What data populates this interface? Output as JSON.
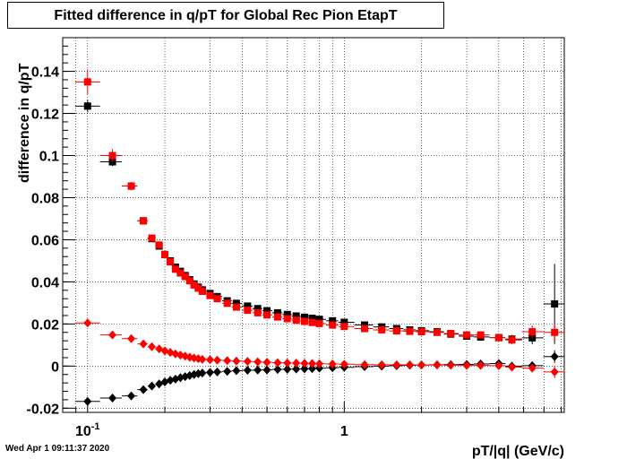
{
  "chart_data": {
    "type": "scatter",
    "title": "Fitted difference in q/pT for Global Rec Pion EtapT",
    "xlabel": "pT/|q| (GeV/c)",
    "ylabel": "difference in q/pT",
    "xscale": "log",
    "xlim": [
      0.08,
      7.2
    ],
    "ylim": [
      -0.022,
      0.156
    ],
    "grid": true,
    "x_ticks": [
      {
        "value": 0.1,
        "label": "10",
        "sup": "-1"
      },
      {
        "value": 1,
        "label": "1",
        "sup": ""
      }
    ],
    "y_ticks": [
      -0.02,
      0,
      0.02,
      0.04,
      0.06,
      0.08,
      0.1,
      0.12,
      0.14
    ],
    "y_tick_labels": [
      "-0.02",
      "0",
      "0.02",
      "0.04",
      "0.06",
      "0.08",
      "0.1",
      "0.12",
      "0.14"
    ],
    "series": [
      {
        "marker": "square",
        "color": "#000000",
        "x": [
          0.1,
          0.125,
          0.148,
          0.165,
          0.178,
          0.19,
          0.2,
          0.21,
          0.22,
          0.23,
          0.24,
          0.25,
          0.26,
          0.27,
          0.28,
          0.3,
          0.32,
          0.35,
          0.38,
          0.42,
          0.46,
          0.5,
          0.55,
          0.6,
          0.65,
          0.7,
          0.75,
          0.8,
          0.9,
          1.0,
          1.2,
          1.4,
          1.6,
          1.8,
          2.0,
          2.3,
          2.6,
          3.0,
          3.4,
          4.0,
          4.5,
          5.4,
          6.6
        ],
        "y": [
          0.1235,
          0.097,
          0.0855,
          0.069,
          0.0605,
          0.057,
          0.053,
          0.05,
          0.047,
          0.045,
          0.043,
          0.041,
          0.039,
          0.0375,
          0.0362,
          0.0345,
          0.033,
          0.031,
          0.0298,
          0.0285,
          0.0273,
          0.0263,
          0.0253,
          0.0245,
          0.0238,
          0.0232,
          0.0227,
          0.0222,
          0.0215,
          0.0208,
          0.0195,
          0.0186,
          0.0178,
          0.0172,
          0.0168,
          0.0163,
          0.0152,
          0.0142,
          0.0138,
          0.0135,
          0.0128,
          0.0134,
          0.0295
        ],
        "yerr": [
          0.003,
          0.002,
          0.0015,
          0.001,
          0.001,
          0.001,
          0.0008,
          0.0008,
          0.0008,
          0.0007,
          0.0007,
          0.0006,
          0.0006,
          0.0006,
          0.0005,
          0.0005,
          0.0005,
          0.0005,
          0.0004,
          0.0004,
          0.0004,
          0.0004,
          0.0004,
          0.0004,
          0.0004,
          0.0004,
          0.0004,
          0.0004,
          0.0004,
          0.0004,
          0.0005,
          0.0005,
          0.0005,
          0.0006,
          0.0006,
          0.0007,
          0.0008,
          0.001,
          0.0012,
          0.0015,
          0.002,
          0.003,
          0.019
        ]
      },
      {
        "marker": "square",
        "color": "#ff0000",
        "x": [
          0.1,
          0.125,
          0.148,
          0.165,
          0.178,
          0.19,
          0.2,
          0.21,
          0.22,
          0.23,
          0.24,
          0.25,
          0.26,
          0.27,
          0.28,
          0.3,
          0.32,
          0.35,
          0.38,
          0.42,
          0.46,
          0.5,
          0.55,
          0.6,
          0.65,
          0.7,
          0.75,
          0.8,
          0.9,
          1.0,
          1.2,
          1.4,
          1.6,
          1.8,
          2.0,
          2.3,
          2.6,
          3.0,
          3.4,
          4.0,
          4.5,
          5.4,
          6.6
        ],
        "y": [
          0.135,
          0.1,
          0.0855,
          0.069,
          0.0608,
          0.0575,
          0.053,
          0.0495,
          0.046,
          0.0442,
          0.0425,
          0.0405,
          0.0385,
          0.037,
          0.0355,
          0.0335,
          0.032,
          0.0298,
          0.028,
          0.0265,
          0.0253,
          0.0243,
          0.0233,
          0.0225,
          0.0218,
          0.0212,
          0.0207,
          0.0202,
          0.0195,
          0.0188,
          0.0178,
          0.0172,
          0.0167,
          0.0165,
          0.0163,
          0.016,
          0.0155,
          0.0148,
          0.0148,
          0.0135,
          0.0124,
          0.0163,
          0.016
        ],
        "yerr": [
          0.006,
          0.003,
          0.002,
          0.001,
          0.001,
          0.001,
          0.0008,
          0.0008,
          0.0008,
          0.0007,
          0.0007,
          0.0006,
          0.0006,
          0.0006,
          0.0005,
          0.0005,
          0.0005,
          0.0005,
          0.0004,
          0.0004,
          0.0004,
          0.0004,
          0.0004,
          0.0004,
          0.0004,
          0.0004,
          0.0004,
          0.0004,
          0.0004,
          0.0004,
          0.0005,
          0.0005,
          0.0005,
          0.0006,
          0.0006,
          0.0007,
          0.0008,
          0.001,
          0.0012,
          0.0015,
          0.002,
          0.003,
          0.004
        ]
      },
      {
        "marker": "diamond",
        "color": "#000000",
        "x": [
          0.1,
          0.125,
          0.148,
          0.165,
          0.178,
          0.19,
          0.2,
          0.21,
          0.22,
          0.23,
          0.24,
          0.25,
          0.26,
          0.27,
          0.28,
          0.3,
          0.32,
          0.35,
          0.38,
          0.42,
          0.46,
          0.5,
          0.55,
          0.6,
          0.65,
          0.7,
          0.75,
          0.8,
          0.9,
          1.0,
          1.2,
          1.4,
          1.6,
          1.8,
          2.0,
          2.3,
          2.6,
          3.0,
          3.4,
          4.0,
          4.5,
          5.4,
          6.6
        ],
        "y": [
          -0.0168,
          -0.0152,
          -0.0142,
          -0.0112,
          -0.0095,
          -0.0085,
          -0.0075,
          -0.0068,
          -0.0062,
          -0.0055,
          -0.005,
          -0.0045,
          -0.004,
          -0.0036,
          -0.0033,
          -0.003,
          -0.0028,
          -0.0025,
          -0.0022,
          -0.002,
          -0.0019,
          -0.0018,
          -0.0016,
          -0.0015,
          -0.0014,
          -0.0013,
          -0.0012,
          -0.001,
          -0.0008,
          -0.0006,
          -0.0003,
          0.0,
          0.0002,
          0.0004,
          0.0005,
          0.0006,
          0.0007,
          0.0008,
          0.001,
          0.0012,
          0.0,
          0.0002,
          0.0045
        ],
        "yerr": [
          0.002,
          0.0015,
          0.001,
          0.001,
          0.0008,
          0.0008,
          0.0006,
          0.0006,
          0.0006,
          0.0005,
          0.0005,
          0.0005,
          0.0004,
          0.0004,
          0.0004,
          0.0004,
          0.0004,
          0.0004,
          0.0003,
          0.0003,
          0.0003,
          0.0003,
          0.0003,
          0.0003,
          0.0003,
          0.0003,
          0.0003,
          0.0003,
          0.0003,
          0.0003,
          0.0004,
          0.0004,
          0.0004,
          0.0005,
          0.0005,
          0.0006,
          0.0007,
          0.0008,
          0.001,
          0.0012,
          0.0015,
          0.002,
          0.003
        ]
      },
      {
        "marker": "diamond",
        "color": "#ff0000",
        "x": [
          0.1,
          0.125,
          0.148,
          0.165,
          0.178,
          0.19,
          0.2,
          0.21,
          0.22,
          0.23,
          0.24,
          0.25,
          0.26,
          0.27,
          0.28,
          0.3,
          0.32,
          0.35,
          0.38,
          0.42,
          0.46,
          0.5,
          0.55,
          0.6,
          0.65,
          0.7,
          0.75,
          0.8,
          0.9,
          1.0,
          1.2,
          1.4,
          1.6,
          1.8,
          2.0,
          2.3,
          2.6,
          3.0,
          3.4,
          4.0,
          4.5,
          5.4,
          6.6
        ],
        "y": [
          0.0205,
          0.0148,
          0.013,
          0.0105,
          0.0092,
          0.0082,
          0.0072,
          0.0065,
          0.0058,
          0.0052,
          0.0047,
          0.0042,
          0.0038,
          0.0035,
          0.0032,
          0.003,
          0.0028,
          0.0026,
          0.0024,
          0.0022,
          0.002,
          0.0018,
          0.0016,
          0.0015,
          0.0014,
          0.0013,
          0.0012,
          0.0011,
          0.001,
          0.0009,
          0.0007,
          0.0006,
          0.0006,
          0.0006,
          0.0005,
          0.0005,
          0.0004,
          0.0003,
          0.0003,
          0.0002,
          -0.0005,
          -0.001,
          -0.0028
        ],
        "yerr": [
          0.002,
          0.0015,
          0.001,
          0.001,
          0.0008,
          0.0008,
          0.0006,
          0.0006,
          0.0006,
          0.0005,
          0.0005,
          0.0005,
          0.0004,
          0.0004,
          0.0004,
          0.0004,
          0.0004,
          0.0004,
          0.0003,
          0.0003,
          0.0003,
          0.0003,
          0.0003,
          0.0003,
          0.0003,
          0.0003,
          0.0003,
          0.0003,
          0.0003,
          0.0003,
          0.0004,
          0.0004,
          0.0004,
          0.0005,
          0.0005,
          0.0006,
          0.0007,
          0.0008,
          0.001,
          0.0012,
          0.0015,
          0.002,
          0.003
        ]
      }
    ]
  },
  "footer": {
    "timestamp": "Wed Apr  1 09:11:37 2020"
  }
}
